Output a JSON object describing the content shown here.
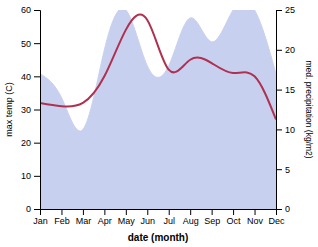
{
  "chart_data": {
    "type": "line",
    "categories": [
      "Jan",
      "Feb",
      "Mar",
      "Apr",
      "May",
      "Jun",
      "Jul",
      "Aug",
      "Sep",
      "Oct",
      "Nov",
      "Dec"
    ],
    "series": [
      {
        "type": "area",
        "color": "#c8d0f0",
        "axis": "y2",
        "values": [
          17,
          14,
          10,
          20,
          25,
          18,
          18,
          24,
          21,
          25,
          25,
          17
        ]
      },
      {
        "type": "line",
        "color": "#b03050",
        "values": [
          32,
          31,
          32,
          40,
          54,
          57,
          42,
          45,
          44,
          41,
          40,
          27
        ]
      }
    ],
    "x_label": "date (month)",
    "y_label": "max temp (C)",
    "y2_label": "med. precipitation (kg/m2)",
    "ylim": [
      0,
      60
    ],
    "yticks": [
      0,
      10,
      20,
      30,
      40,
      50,
      60
    ],
    "y2lim": [
      0,
      25
    ],
    "y2ticks": [
      0,
      5,
      10,
      15,
      20,
      25
    ],
    "grid": false
  }
}
